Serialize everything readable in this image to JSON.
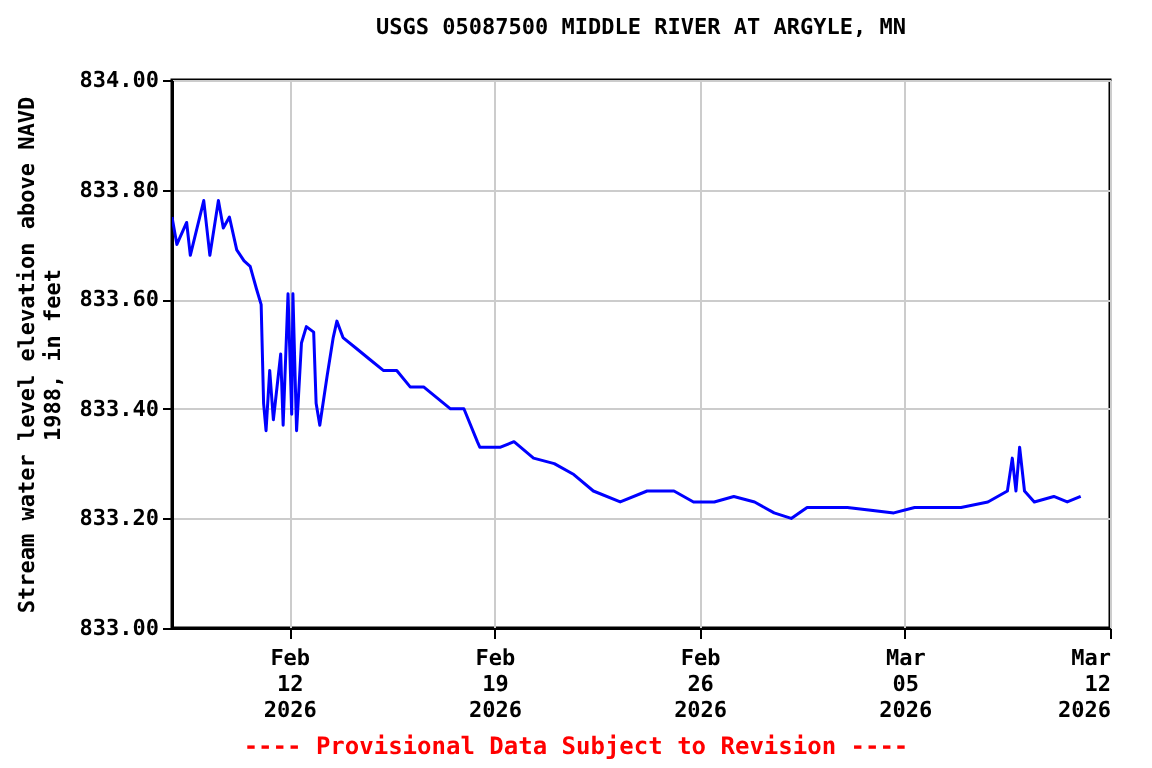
{
  "chart_data": {
    "type": "line",
    "title": "USGS 05087500 MIDDLE RIVER AT ARGYLE, MN",
    "ylabel": "Stream water level elevation above NAVD 1988, in feet",
    "annotations": [
      "---- Provisional Data Subject to Revision ----"
    ],
    "x": [
      "2026-02-08T00:00",
      "2026-02-08T04:00",
      "2026-02-08T12:00",
      "2026-02-08T15:00",
      "2026-02-09T02:00",
      "2026-02-09T07:00",
      "2026-02-09T14:00",
      "2026-02-09T18:00",
      "2026-02-09T23:00",
      "2026-02-10T05:00",
      "2026-02-10T11:00",
      "2026-02-10T16:00",
      "2026-02-10T21:00",
      "2026-02-11T01:00",
      "2026-02-11T03:00",
      "2026-02-11T05:00",
      "2026-02-11T08:00",
      "2026-02-11T11:00",
      "2026-02-11T17:00",
      "2026-02-11T19:00",
      "2026-02-11T23:00",
      "2026-02-12T02:00",
      "2026-02-12T03:00",
      "2026-02-12T06:00",
      "2026-02-12T10:00",
      "2026-02-12T14:00",
      "2026-02-12T20:00",
      "2026-02-12T22:00",
      "2026-02-13T01:00",
      "2026-02-13T07:00",
      "2026-02-13T12:00",
      "2026-02-13T15:00",
      "2026-02-13T20:00",
      "2026-02-14T07:00",
      "2026-02-14T18:00",
      "2026-02-15T05:00",
      "2026-02-15T16:00",
      "2026-02-16T03:00",
      "2026-02-16T14:00",
      "2026-02-17T01:00",
      "2026-02-17T12:00",
      "2026-02-17T23:00",
      "2026-02-18T10:00",
      "2026-02-18T12:00",
      "2026-02-19T05:00",
      "2026-02-19T16:00",
      "2026-02-20T08:00",
      "2026-02-21T01:00",
      "2026-02-21T17:00",
      "2026-02-22T09:00",
      "2026-02-23T07:00",
      "2026-02-24T05:00",
      "2026-02-25T03:00",
      "2026-02-25T19:00",
      "2026-02-26T12:00",
      "2026-02-27T04:00",
      "2026-02-27T21:00",
      "2026-02-28T13:00",
      "2026-03-01T03:00",
      "2026-03-01T16:00",
      "2026-03-03T01:00",
      "2026-03-04T15:00",
      "2026-03-05T08:00",
      "2026-03-06T22:00",
      "2026-03-07T20:00",
      "2026-03-08T12:00",
      "2026-03-08T16:00",
      "2026-03-08T19:00",
      "2026-03-08T22:00",
      "2026-03-09T02:00",
      "2026-03-09T10:00",
      "2026-03-10T02:00",
      "2026-03-10T13:00",
      "2026-03-11T00:00"
    ],
    "series": [
      {
        "color": "#0000ff",
        "values": [
          833.75,
          833.7,
          833.74,
          833.68,
          833.78,
          833.68,
          833.78,
          833.73,
          833.75,
          833.69,
          833.67,
          833.66,
          833.62,
          833.59,
          833.41,
          833.36,
          833.47,
          833.38,
          833.5,
          833.37,
          833.61,
          833.39,
          833.61,
          833.36,
          833.52,
          833.55,
          833.54,
          833.41,
          833.37,
          833.46,
          833.53,
          833.56,
          833.53,
          833.51,
          833.49,
          833.47,
          833.47,
          833.44,
          833.44,
          833.42,
          833.4,
          833.4,
          833.34,
          833.33,
          833.33,
          833.34,
          833.31,
          833.3,
          833.28,
          833.25,
          833.23,
          833.25,
          833.25,
          833.23,
          833.23,
          833.24,
          833.23,
          833.21,
          833.2,
          833.22,
          833.22,
          833.21,
          833.22,
          833.22,
          833.23,
          833.25,
          833.31,
          833.25,
          833.33,
          833.25,
          833.23,
          833.24,
          833.23,
          833.24
        ]
      }
    ],
    "xlim": [
      "2026-02-08",
      "2026-03-12"
    ],
    "xticks": [
      {
        "value": "2026-02-12",
        "label": "Feb 12 2026"
      },
      {
        "value": "2026-02-19",
        "label": "Feb 19 2026"
      },
      {
        "value": "2026-02-26",
        "label": "Feb 26 2026"
      },
      {
        "value": "2026-03-05",
        "label": "Mar 05 2026"
      },
      {
        "value": "2026-03-12",
        "label": "Mar 12 2026"
      }
    ],
    "ylim": [
      833.0,
      834.0
    ],
    "yticks": [
      {
        "value": 833.0,
        "label": "833.00"
      },
      {
        "value": 833.2,
        "label": "833.20"
      },
      {
        "value": 833.4,
        "label": "833.40"
      },
      {
        "value": 833.6,
        "label": "833.60"
      },
      {
        "value": 833.8,
        "label": "833.80"
      },
      {
        "value": 834.0,
        "label": "834.00"
      }
    ],
    "grid": true
  }
}
